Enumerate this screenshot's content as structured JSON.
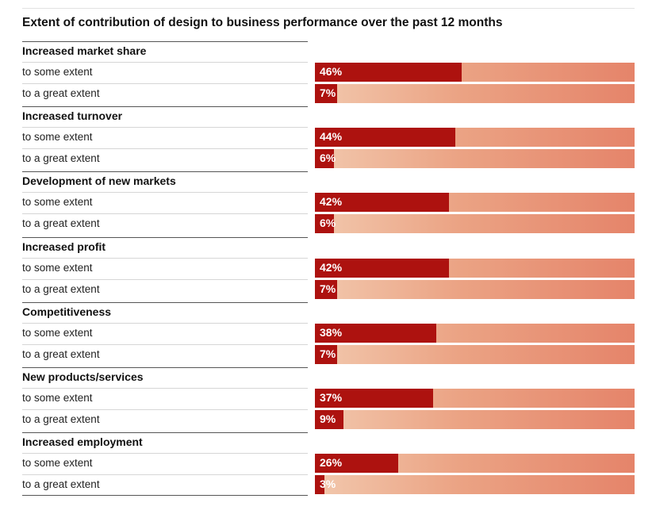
{
  "chart_data": {
    "type": "bar",
    "title": "Extent of contribution of design to business performance over the past 12 months",
    "xlim": [
      0,
      100
    ],
    "unit": "%",
    "colors": {
      "fill": "#ad120f",
      "track_light": "#f2c8ad",
      "track_dark": "#e5846a"
    },
    "groups": [
      {
        "label": "Increased market share",
        "rows": [
          {
            "label": "to some extent",
            "value": 46,
            "text": "46%"
          },
          {
            "label": "to a great extent",
            "value": 7,
            "text": "7%"
          }
        ]
      },
      {
        "label": "Increased turnover",
        "rows": [
          {
            "label": "to some extent",
            "value": 44,
            "text": "44%"
          },
          {
            "label": "to a great extent",
            "value": 6,
            "text": "6%"
          }
        ]
      },
      {
        "label": "Development of new markets",
        "rows": [
          {
            "label": "to some extent",
            "value": 42,
            "text": "42%"
          },
          {
            "label": "to a great extent",
            "value": 6,
            "text": "6%"
          }
        ]
      },
      {
        "label": "Increased profit",
        "rows": [
          {
            "label": "to some extent",
            "value": 42,
            "text": "42%"
          },
          {
            "label": "to a great extent",
            "value": 7,
            "text": "7%"
          }
        ]
      },
      {
        "label": "Competitiveness",
        "rows": [
          {
            "label": "to some extent",
            "value": 38,
            "text": "38%"
          },
          {
            "label": "to a great extent",
            "value": 7,
            "text": "7%"
          }
        ]
      },
      {
        "label": "New products/services",
        "rows": [
          {
            "label": "to some extent",
            "value": 37,
            "text": "37%"
          },
          {
            "label": "to a great extent",
            "value": 9,
            "text": "9%"
          }
        ]
      },
      {
        "label": "Increased employment",
        "rows": [
          {
            "label": "to some extent",
            "value": 26,
            "text": "26%"
          },
          {
            "label": "to a great extent",
            "value": 3,
            "text": "3%"
          }
        ]
      }
    ]
  }
}
